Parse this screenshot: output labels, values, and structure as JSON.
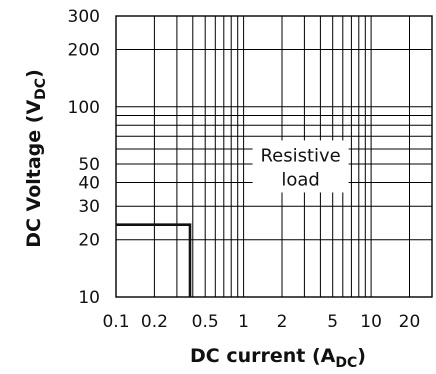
{
  "chart_data": {
    "type": "line",
    "xscale": "log",
    "yscale": "log",
    "xlim": [
      0.1,
      30
    ],
    "ylim": [
      10,
      300
    ],
    "xticks": [
      {
        "value": 0.1,
        "label": "0.1"
      },
      {
        "value": 0.2,
        "label": "0.2"
      },
      {
        "value": 0.5,
        "label": "0.5"
      },
      {
        "value": 1,
        "label": "1"
      },
      {
        "value": 2,
        "label": "2"
      },
      {
        "value": 5,
        "label": "5"
      },
      {
        "value": 10,
        "label": "10"
      },
      {
        "value": 20,
        "label": "20"
      }
    ],
    "yticks": [
      {
        "value": 10,
        "label": "10"
      },
      {
        "value": 20,
        "label": "20"
      },
      {
        "value": 30,
        "label": "30"
      },
      {
        "value": 40,
        "label": "40"
      },
      {
        "value": 50,
        "label": "50"
      },
      {
        "value": 100,
        "label": "100"
      },
      {
        "value": 200,
        "label": "200"
      },
      {
        "value": 300,
        "label": "300"
      }
    ],
    "xgrid": [
      0.1,
      0.2,
      0.3,
      0.4,
      0.5,
      0.6,
      0.7,
      0.8,
      0.9,
      1,
      2,
      3,
      4,
      5,
      6,
      7,
      8,
      9,
      10,
      20,
      30
    ],
    "ygrid": [
      10,
      20,
      30,
      40,
      50,
      60,
      70,
      80,
      90,
      100,
      200,
      300
    ],
    "grid": true,
    "xlabel": {
      "main": "DC current (A",
      "sub": "DC",
      "end": ")"
    },
    "ylabel": {
      "main": "DC Voltage (V",
      "sub": "DC",
      "end": ")"
    },
    "annotation": {
      "lines": [
        "Resistive",
        "load"
      ],
      "x": 2.8,
      "y": 90
    },
    "series": [
      {
        "x": [
          0.1,
          0.38,
          0.38
        ],
        "y": [
          24,
          24,
          10
        ]
      }
    ]
  }
}
